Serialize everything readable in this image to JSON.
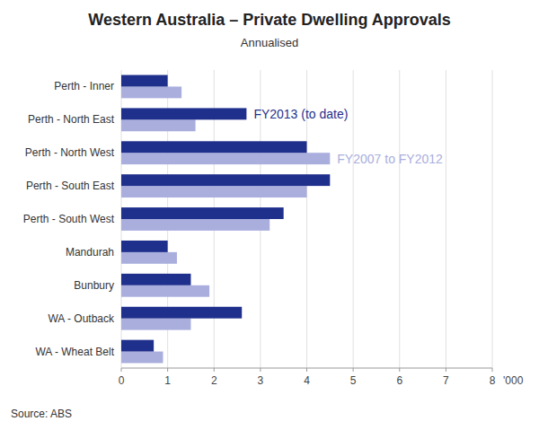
{
  "chart_data": {
    "type": "bar",
    "orientation": "horizontal",
    "title": "Western Australia – Private Dwelling Approvals",
    "subtitle": "Annualised",
    "xlabel": "'000",
    "source": "Source: ABS",
    "categories": [
      "Perth - Inner",
      "Perth - North East",
      "Perth - North West",
      "Perth - South East",
      "Perth - South West",
      "Mandurah",
      "Bunbury",
      "WA - Outback",
      "WA - Wheat Belt"
    ],
    "series": [
      {
        "name": "FY2007 to FY2012",
        "color": "#A9AEDD",
        "values": [
          1.3,
          1.6,
          4.5,
          4.0,
          3.2,
          1.2,
          1.9,
          1.5,
          0.9
        ]
      },
      {
        "name": "FY2013 (to date)",
        "color": "#1F2F8C",
        "values": [
          1.0,
          2.7,
          4.0,
          4.5,
          3.5,
          1.0,
          1.5,
          2.6,
          0.7
        ]
      }
    ],
    "xlim": [
      0,
      8
    ],
    "xticks": [
      0,
      1,
      2,
      3,
      4,
      5,
      6,
      7,
      8
    ],
    "grid": true
  }
}
